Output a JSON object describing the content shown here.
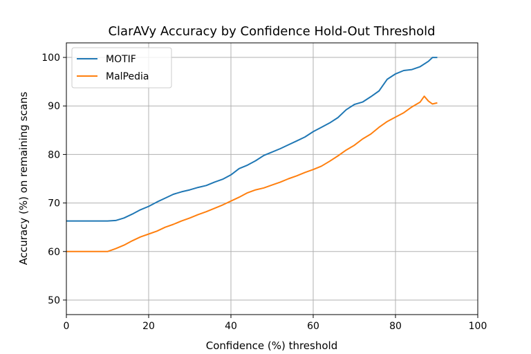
{
  "chart_data": {
    "type": "line",
    "title": "ClarAVy Accuracy by Confidence Hold-Out Threshold",
    "xlabel": "Confidence (%) threshold",
    "ylabel": "Accuracy (%) on remaining scans",
    "xlim": [
      0,
      100
    ],
    "ylim": [
      47,
      103
    ],
    "xticks": [
      0,
      20,
      40,
      60,
      80,
      100
    ],
    "yticks": [
      50,
      60,
      70,
      80,
      90,
      100
    ],
    "grid": true,
    "legend_position": "top-left",
    "series": [
      {
        "name": "MOTIF",
        "color": "#1f77b4",
        "x": [
          0,
          5,
          10,
          12,
          14,
          16,
          18,
          20,
          22,
          24,
          26,
          28,
          30,
          32,
          34,
          36,
          38,
          40,
          42,
          44,
          46,
          48,
          50,
          52,
          54,
          56,
          58,
          60,
          62,
          64,
          66,
          68,
          70,
          72,
          74,
          76,
          78,
          80,
          82,
          84,
          86,
          88,
          89,
          90
        ],
        "y": [
          66.3,
          66.3,
          66.3,
          66.4,
          66.9,
          67.7,
          68.6,
          69.3,
          70.2,
          71.0,
          71.8,
          72.3,
          72.7,
          73.2,
          73.6,
          74.3,
          74.9,
          75.8,
          77.1,
          77.8,
          78.7,
          79.8,
          80.5,
          81.2,
          82.0,
          82.8,
          83.6,
          84.7,
          85.6,
          86.5,
          87.6,
          89.2,
          90.3,
          90.8,
          91.9,
          93.1,
          95.5,
          96.6,
          97.3,
          97.5,
          98.1,
          99.2,
          100.0,
          100.0
        ]
      },
      {
        "name": "MalPedia",
        "color": "#ff7f0e",
        "x": [
          0,
          5,
          10,
          12,
          14,
          16,
          18,
          20,
          22,
          24,
          26,
          28,
          30,
          32,
          34,
          36,
          38,
          40,
          42,
          44,
          46,
          48,
          50,
          52,
          54,
          56,
          58,
          60,
          62,
          64,
          66,
          68,
          70,
          72,
          74,
          76,
          78,
          80,
          82,
          84,
          86,
          87,
          88,
          89,
          90
        ],
        "y": [
          60.0,
          60.0,
          60.0,
          60.6,
          61.3,
          62.2,
          63.0,
          63.6,
          64.2,
          65.0,
          65.6,
          66.3,
          66.9,
          67.6,
          68.2,
          68.9,
          69.6,
          70.4,
          71.2,
          72.1,
          72.7,
          73.1,
          73.7,
          74.3,
          75.0,
          75.6,
          76.3,
          76.9,
          77.6,
          78.6,
          79.7,
          80.9,
          81.9,
          83.2,
          84.2,
          85.6,
          86.8,
          87.7,
          88.6,
          89.8,
          90.8,
          92.0,
          91.0,
          90.4,
          90.6
        ]
      }
    ]
  }
}
